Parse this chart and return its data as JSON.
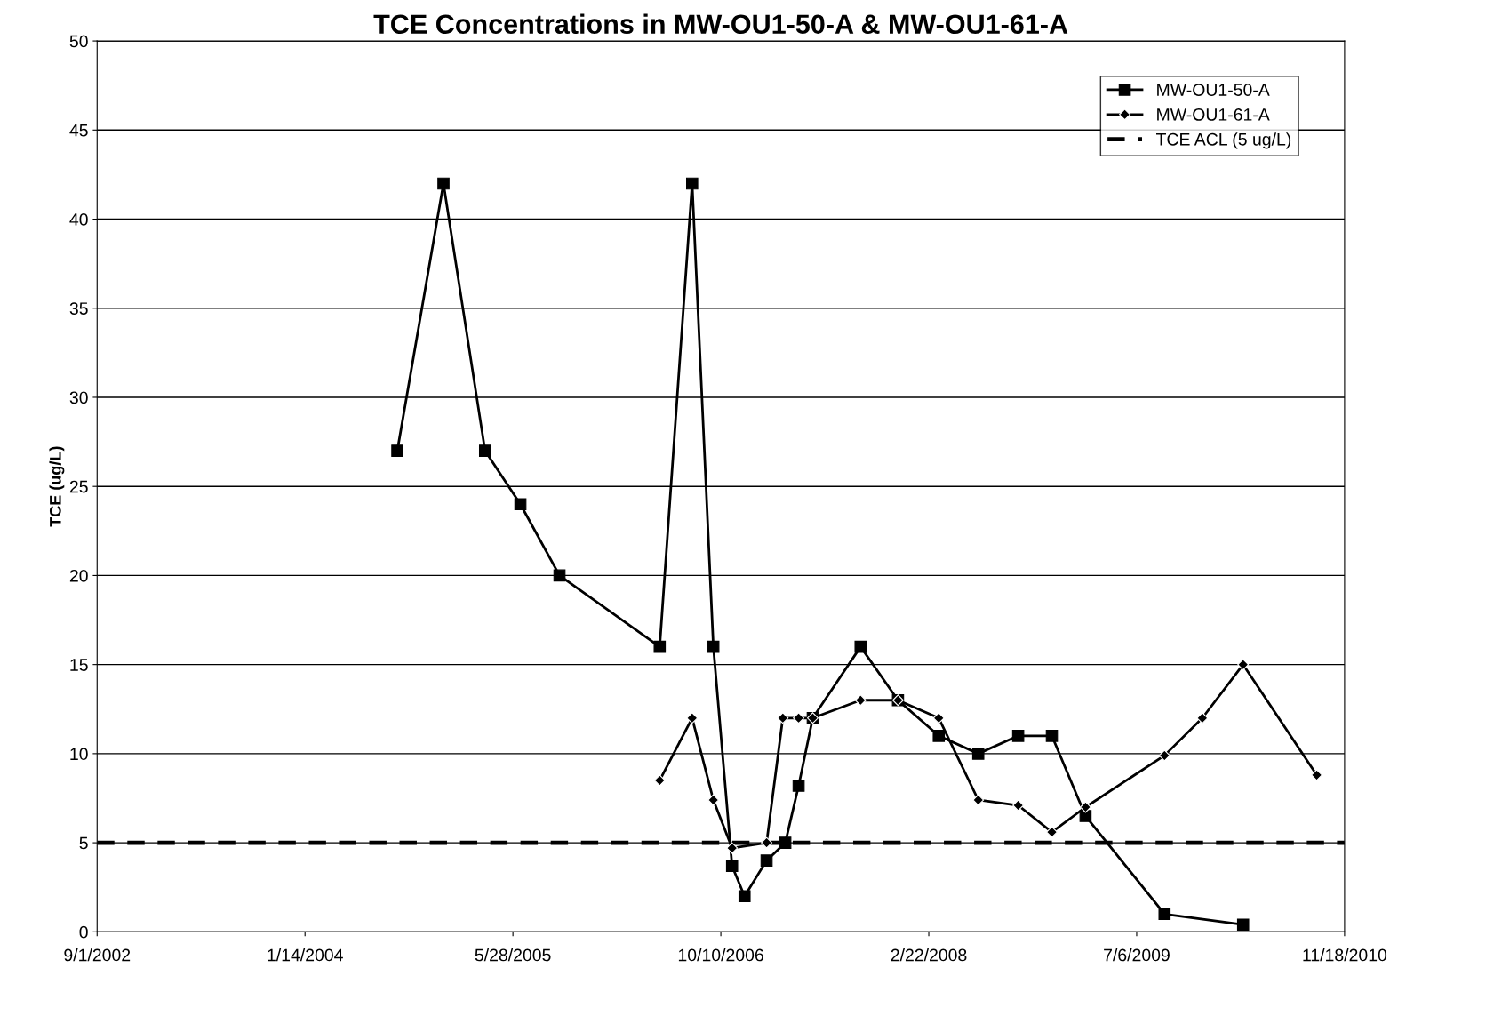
{
  "chart_data": {
    "type": "line",
    "title": "TCE Concentrations in MW-OU1-50-A & MW-OU1-61-A",
    "ylabel": "TCE (ug/L)",
    "series": [
      {
        "name": "MW-OU1-50-A",
        "color": "#000000",
        "marker": "square",
        "x": [
          "2004-08-23",
          "2004-12-12",
          "2005-03-22",
          "2005-06-15",
          "2005-09-17",
          "2006-05-16",
          "2006-08-02",
          "2006-09-22",
          "2006-11-06",
          "2006-12-06",
          "2007-01-28",
          "2007-03-14",
          "2007-04-15",
          "2007-05-19",
          "2007-09-11",
          "2007-12-10",
          "2008-03-17",
          "2008-06-20",
          "2008-09-24",
          "2008-12-14",
          "2009-03-05",
          "2009-09-11",
          "2010-03-19"
        ],
        "values": [
          27,
          42,
          27,
          24,
          20,
          16,
          42,
          16,
          3.7,
          2,
          4,
          5,
          8.2,
          12,
          16,
          13,
          11,
          10,
          11,
          11,
          6.5,
          1,
          0.4
        ]
      },
      {
        "name": "MW-OU1-61-A",
        "color": "#000000",
        "marker": "diamond",
        "x": [
          "2006-05-16",
          "2006-08-02",
          "2006-09-22",
          "2006-11-06",
          "2007-01-28",
          "2007-03-08",
          "2007-04-15",
          "2007-05-19",
          "2007-09-11",
          "2007-12-10",
          "2008-03-17",
          "2008-06-20",
          "2008-09-24",
          "2008-12-14",
          "2009-03-05",
          "2009-09-11",
          "2009-12-11",
          "2010-03-19",
          "2010-09-12"
        ],
        "values": [
          8.5,
          12,
          7.4,
          4.7,
          5,
          12,
          12,
          12,
          13,
          13,
          12,
          7.4,
          7.1,
          5.6,
          7,
          9.9,
          12,
          15,
          8.8
        ]
      }
    ],
    "ref_lines": [
      {
        "axis": "y",
        "value": 5,
        "label": "TCE ACL (5 ug/L)",
        "color": "#000000",
        "line_style": "dashed"
      }
    ],
    "xlim": [
      "2002-09-01",
      "2010-11-18"
    ],
    "xticks": [
      {
        "value": "2002-09-01",
        "label": "9/1/2002"
      },
      {
        "value": "2004-01-14",
        "label": "1/14/2004"
      },
      {
        "value": "2005-05-28",
        "label": "5/28/2005"
      },
      {
        "value": "2006-10-10",
        "label": "10/10/2006"
      },
      {
        "value": "2008-02-22",
        "label": "2/22/2008"
      },
      {
        "value": "2009-07-06",
        "label": "7/6/2009"
      },
      {
        "value": "2010-11-18",
        "label": "11/18/2010"
      }
    ],
    "ylim": [
      0,
      50
    ],
    "yticks": [
      0,
      5,
      10,
      15,
      20,
      25,
      30,
      35,
      40,
      45,
      50
    ],
    "grid": "y",
    "legend": "top right"
  }
}
